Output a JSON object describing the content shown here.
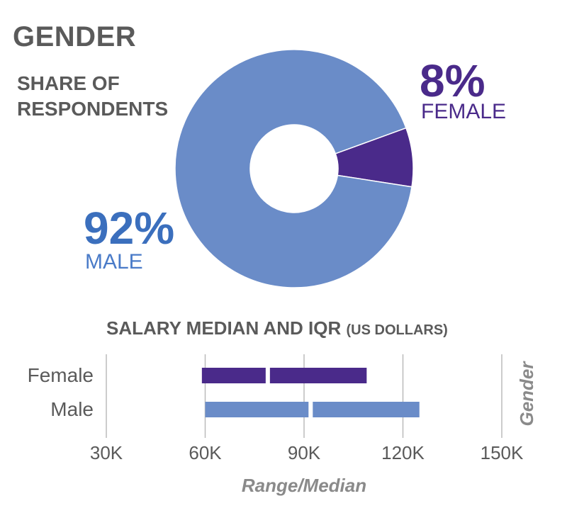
{
  "header": {
    "title": "GENDER",
    "subtitle": "SHARE OF RESPONDENTS"
  },
  "colors": {
    "female": "#4a2a8a",
    "male": "#6a8cc8",
    "text": "#5a5a5a",
    "grid": "#bbbbbb"
  },
  "chart_data": [
    {
      "type": "pie",
      "subtype": "donut",
      "title": "GENDER",
      "subtitle": "SHARE OF RESPONDENTS",
      "slices": [
        {
          "label": "FEMALE",
          "value": 8,
          "display": "8%"
        },
        {
          "label": "MALE",
          "value": 92,
          "display": "92%"
        }
      ]
    },
    {
      "type": "bar",
      "subtype": "range-median",
      "title": "SALARY MEDIAN AND IQR",
      "title_unit": "(US DOLLARS)",
      "orientation": "horizontal",
      "categories": [
        "Female",
        "Male"
      ],
      "ranges": [
        {
          "category": "Female",
          "low": 59000,
          "median": 79000,
          "high": 109000
        },
        {
          "category": "Male",
          "low": 60000,
          "median": 92000,
          "high": 125000
        }
      ],
      "xlim": [
        30000,
        150000
      ],
      "xticks": [
        30000,
        60000,
        90000,
        120000,
        150000
      ],
      "xtick_labels": [
        "30K",
        "60K",
        "90K",
        "120K",
        "150K"
      ],
      "xlabel": "Range/Median",
      "ylabel": "Gender",
      "grid": true
    }
  ]
}
